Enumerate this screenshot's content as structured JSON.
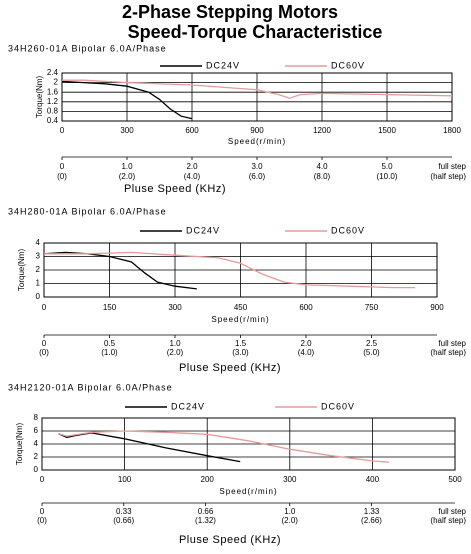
{
  "title": "2-Phase Stepping Motors",
  "subtitle": "Speed-Torque Characteristice",
  "chart_data": [
    {
      "type": "line",
      "subtitle": "34H260-01A Bipolar 6.0A/Phase",
      "y_label": "Torque(Nm)",
      "x_label": "Speed(r/min)",
      "xlim": [
        0,
        1800
      ],
      "xticks": [
        0,
        300,
        600,
        900,
        1200,
        1500,
        1800
      ],
      "ylim": [
        0.4,
        2.4
      ],
      "yticks": [
        0.4,
        0.8,
        1.2,
        1.6,
        2,
        2.4
      ],
      "grid": true,
      "series": [
        {
          "name": "DC24V",
          "color": "#000000",
          "x": [
            0,
            100,
            200,
            300,
            400,
            450,
            500,
            550,
            600
          ],
          "values": [
            2.05,
            2.0,
            1.95,
            1.85,
            1.6,
            1.3,
            0.9,
            0.6,
            0.5
          ]
        },
        {
          "name": "DC60V",
          "color": "#e89a9a",
          "x": [
            0,
            100,
            300,
            600,
            900,
            1000,
            1050,
            1100,
            1200,
            1500,
            1800
          ],
          "values": [
            2.1,
            2.1,
            2.0,
            1.9,
            1.7,
            1.5,
            1.35,
            1.5,
            1.55,
            1.5,
            1.45
          ]
        }
      ],
      "pulse_axis": {
        "label": "Pluse Speed (KHz)",
        "xlim": [
          0,
          6
        ],
        "ticks": [
          0,
          {
            "value": 1,
            "label": "1.0"
          },
          {
            "value": 2,
            "label": "2.0"
          },
          {
            "value": 3,
            "label": "3.0"
          },
          {
            "value": 4,
            "label": "4.0"
          },
          {
            "value": 5,
            "label": "5.0"
          }
        ],
        "half_step_labels": [
          "(0)",
          "(2.0)",
          "(4.0)",
          "(6.0)",
          "(8.0)",
          "(10.0)"
        ],
        "full_step_label": "full step",
        "half_step_label": "(half step)"
      }
    },
    {
      "type": "line",
      "subtitle": "34H280-01A Bipolar 6.0A/Phase",
      "y_label": "Torque(Nm)",
      "x_label": "Speed(r/min)",
      "xlim": [
        0,
        900
      ],
      "xticks": [
        0,
        150,
        300,
        450,
        600,
        750,
        900
      ],
      "ylim": [
        0,
        4
      ],
      "yticks": [
        0,
        1,
        2,
        3,
        4
      ],
      "grid": true,
      "series": [
        {
          "name": "DC24V",
          "color": "#000000",
          "x": [
            0,
            50,
            100,
            150,
            200,
            230,
            260,
            300,
            350
          ],
          "values": [
            3.2,
            3.3,
            3.2,
            3.0,
            2.6,
            1.8,
            1.1,
            0.8,
            0.6
          ]
        },
        {
          "name": "DC60V",
          "color": "#e89a9a",
          "x": [
            0,
            100,
            200,
            300,
            400,
            450,
            500,
            550,
            600,
            700,
            800,
            850
          ],
          "values": [
            3.2,
            3.2,
            3.3,
            3.1,
            2.9,
            2.5,
            1.7,
            1.1,
            0.9,
            0.8,
            0.7,
            0.7
          ]
        }
      ],
      "pulse_axis": {
        "label": "Pluse Speed (KHz)",
        "xlim": [
          0,
          3
        ],
        "ticks": [
          0,
          0.5,
          {
            "value": 1,
            "label": "1.0"
          },
          1.5,
          {
            "value": 2,
            "label": "2.0"
          },
          2.5
        ],
        "half_step_labels": [
          "(0)",
          "(1.0)",
          "(2.0)",
          "(3.0)",
          "(4.0)",
          "(5.0)"
        ],
        "full_step_label": "full step",
        "half_step_label": "(half step)"
      }
    },
    {
      "type": "line",
      "subtitle": "34H2120-01A Bipolar 6.0A/Phase",
      "y_label": "Torque(Nm)",
      "x_label": "Speed(r/min)",
      "xlim": [
        0,
        500
      ],
      "xticks": [
        0,
        100,
        200,
        300,
        400,
        500
      ],
      "ylim": [
        0,
        8
      ],
      "yticks": [
        0,
        2,
        4,
        6,
        8
      ],
      "grid": true,
      "series": [
        {
          "name": "DC24V",
          "color": "#000000",
          "x": [
            20,
            30,
            40,
            60,
            100,
            150,
            200,
            240
          ],
          "values": [
            5.6,
            5.0,
            5.3,
            5.7,
            4.8,
            3.4,
            2.2,
            1.3
          ]
        },
        {
          "name": "DC60V",
          "color": "#e89a9a",
          "x": [
            20,
            30,
            40,
            60,
            100,
            150,
            200,
            250,
            300,
            350,
            400,
            420
          ],
          "values": [
            5.6,
            5.2,
            5.4,
            5.8,
            6.0,
            5.8,
            5.5,
            4.5,
            3.2,
            2.2,
            1.4,
            1.2
          ]
        }
      ],
      "pulse_axis": {
        "label": "Pluse Speed (KHz)",
        "xlim": [
          0,
          1.667
        ],
        "ticks": [
          0,
          0.33,
          0.66,
          {
            "value": 1,
            "label": "1.0"
          },
          1.33
        ],
        "half_step_labels": [
          "(0)",
          "(0.66)",
          "(1.32)",
          "(2.0)",
          "(2.66)"
        ],
        "full_step_label": "full step",
        "half_step_label": "(half step)"
      }
    }
  ]
}
